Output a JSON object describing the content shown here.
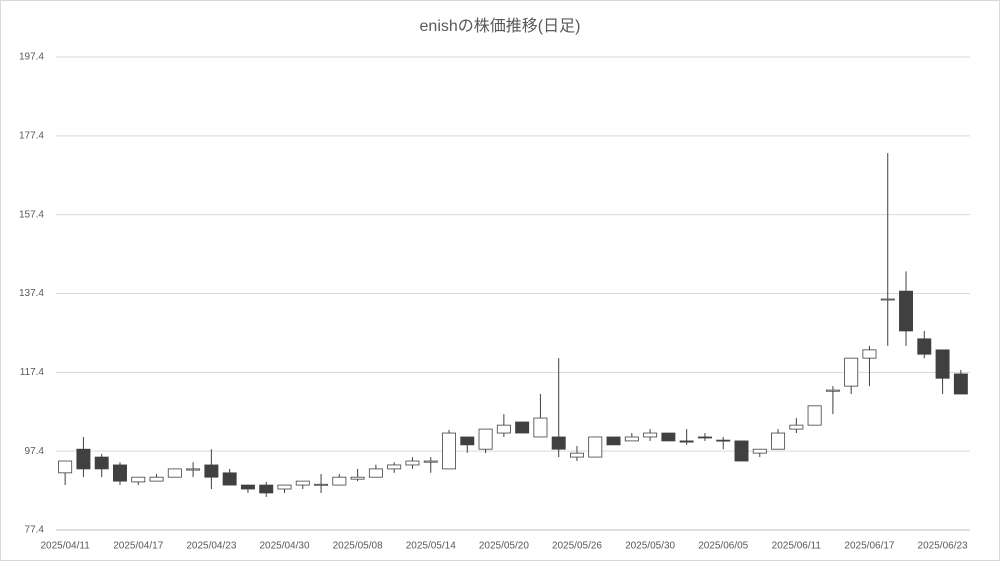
{
  "chart_data": {
    "type": "candlestick",
    "title": "enishの株価推移(日足)",
    "categories": [
      "2025/04/11",
      null,
      null,
      null,
      "2025/04/17",
      null,
      null,
      null,
      "2025/04/23",
      null,
      null,
      null,
      "2025/04/30",
      null,
      null,
      null,
      "2025/05/08",
      null,
      null,
      null,
      "2025/05/14",
      null,
      null,
      null,
      "2025/05/20",
      null,
      null,
      null,
      "2025/05/26",
      null,
      null,
      null,
      "2025/05/30",
      null,
      null,
      null,
      "2025/06/05",
      null,
      null,
      null,
      "2025/06/11",
      null,
      null,
      null,
      "2025/06/17",
      null,
      null,
      null,
      "2025/06/23",
      null
    ],
    "open": [
      91.9,
      97.9,
      95.9,
      93.9,
      89.6,
      89.8,
      90.8,
      92.6,
      93.9,
      91.9,
      88.8,
      88.8,
      87.8,
      88.8,
      88.8,
      88.8,
      90.3,
      90.8,
      92.9,
      93.9,
      94.6,
      92.9,
      101.0,
      97.9,
      102.0,
      104.8,
      101.0,
      101.0,
      95.9,
      95.9,
      101.0,
      100.0,
      101.0,
      102.0,
      100.0,
      101.0,
      100.2,
      100.0,
      96.9,
      97.9,
      103.0,
      104.0,
      112.6,
      113.9,
      121.0,
      135.8,
      138.0,
      125.9,
      123.1,
      117.0
    ],
    "high": [
      94.9,
      101.0,
      96.7,
      94.6,
      90.8,
      91.6,
      92.9,
      94.6,
      97.9,
      92.9,
      88.8,
      89.6,
      88.8,
      89.8,
      91.6,
      91.6,
      92.9,
      94.0,
      94.6,
      95.9,
      95.9,
      102.8,
      101.0,
      103.0,
      106.8,
      104.8,
      111.9,
      121.0,
      98.7,
      101.0,
      101.0,
      102.0,
      103.0,
      102.0,
      103.0,
      102.0,
      101.0,
      100.0,
      97.9,
      103.0,
      105.8,
      108.9,
      113.9,
      121.0,
      124.1,
      173.0,
      143.0,
      127.9,
      123.1,
      118.0
    ],
    "low": [
      88.8,
      90.8,
      90.8,
      88.8,
      88.8,
      89.8,
      90.8,
      90.8,
      87.8,
      88.8,
      86.8,
      85.8,
      86.8,
      87.8,
      86.8,
      88.8,
      89.8,
      90.8,
      91.9,
      92.9,
      91.9,
      92.9,
      97.0,
      96.9,
      101.0,
      102.0,
      101.0,
      95.9,
      94.9,
      95.9,
      99.0,
      100.0,
      100.0,
      100.0,
      99.0,
      100.0,
      97.9,
      94.9,
      95.9,
      97.9,
      102.0,
      104.0,
      106.8,
      111.9,
      113.9,
      124.1,
      124.1,
      121.0,
      111.9,
      111.9
    ],
    "close": [
      94.9,
      92.9,
      92.9,
      89.8,
      90.8,
      90.8,
      92.9,
      92.9,
      90.8,
      88.8,
      87.8,
      86.8,
      88.8,
      89.8,
      89.0,
      90.8,
      90.8,
      92.9,
      93.9,
      94.9,
      94.9,
      102.0,
      99.0,
      103.0,
      104.0,
      102.0,
      105.8,
      97.9,
      96.9,
      101.0,
      99.0,
      101.0,
      102.0,
      100.0,
      99.7,
      100.8,
      100.0,
      94.9,
      97.9,
      102.0,
      104.0,
      108.9,
      112.9,
      121.0,
      123.1,
      136.0,
      127.9,
      122.0,
      115.9,
      111.9
    ],
    "up_color": "#ffffff",
    "down_color": "#404040",
    "line_color": "#404040",
    "ylim": [
      77.4,
      197.4
    ],
    "yticks": [
      77.4,
      97.4,
      117.4,
      137.4,
      157.4,
      177.4,
      197.4
    ],
    "grid": true
  }
}
